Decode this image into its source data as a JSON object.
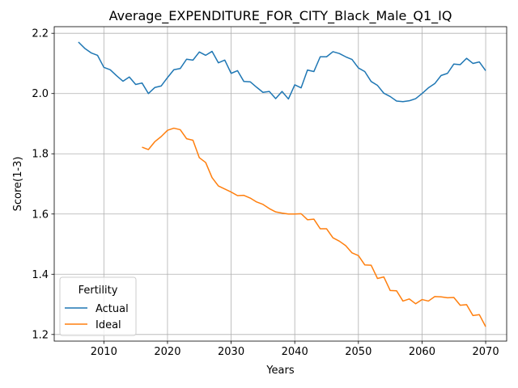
{
  "chart_data": {
    "type": "line",
    "title": "Average_EXPENDITURE_FOR_CITY_Black_Male_Q1_IQ",
    "xlabel": "Years",
    "ylabel": "Score(1-3)",
    "xlim": [
      2002.2,
      2073.3
    ],
    "ylim": [
      1.178,
      2.222
    ],
    "xticks": [
      2010,
      2020,
      2030,
      2040,
      2050,
      2060,
      2070
    ],
    "yticks": [
      1.2,
      1.4,
      1.6,
      1.8,
      2.0,
      2.2
    ],
    "xtick_labels": [
      "2010",
      "2020",
      "2030",
      "2040",
      "2050",
      "2060",
      "2070"
    ],
    "ytick_labels": [
      "1.2",
      "1.4",
      "1.6",
      "1.8",
      "2.0",
      "2.2"
    ],
    "grid": true,
    "legend": {
      "title": "Fertility",
      "placement": "lower-left"
    },
    "series": [
      {
        "name": "Actual",
        "color": "#1f77b4",
        "x": [
          2006,
          2007,
          2008,
          2009,
          2010,
          2011,
          2012,
          2013,
          2014,
          2015,
          2016,
          2017,
          2018,
          2019,
          2020,
          2021,
          2022,
          2023,
          2024,
          2025,
          2026,
          2027,
          2028,
          2029,
          2030,
          2031,
          2032,
          2033,
          2034,
          2035,
          2036,
          2037,
          2038,
          2039,
          2040,
          2041,
          2042,
          2043,
          2044,
          2045,
          2046,
          2047,
          2048,
          2049,
          2050,
          2051,
          2052,
          2053,
          2054,
          2055,
          2056,
          2057,
          2058,
          2059,
          2060,
          2061,
          2062,
          2063,
          2064,
          2065,
          2066,
          2067,
          2068,
          2069,
          2070
        ],
        "values": [
          2.171,
          2.15,
          2.135,
          2.127,
          2.087,
          2.079,
          2.059,
          2.041,
          2.055,
          2.03,
          2.035,
          2.0,
          2.02,
          2.025,
          2.053,
          2.079,
          2.083,
          2.114,
          2.111,
          2.138,
          2.127,
          2.14,
          2.102,
          2.111,
          2.067,
          2.076,
          2.04,
          2.039,
          2.021,
          2.004,
          2.007,
          1.983,
          2.007,
          1.982,
          2.029,
          2.019,
          2.078,
          2.073,
          2.122,
          2.122,
          2.139,
          2.133,
          2.122,
          2.113,
          2.085,
          2.073,
          2.04,
          2.027,
          2.001,
          1.99,
          1.975,
          1.973,
          1.976,
          1.983,
          2.0,
          2.019,
          2.033,
          2.06,
          2.067,
          2.098,
          2.096,
          2.117,
          2.1,
          2.105,
          2.076
        ]
      },
      {
        "name": "Ideal",
        "color": "#ff7f0e",
        "x": [
          2016,
          2017,
          2018,
          2019,
          2020,
          2021,
          2022,
          2023,
          2024,
          2025,
          2026,
          2027,
          2028,
          2029,
          2030,
          2031,
          2032,
          2033,
          2034,
          2035,
          2036,
          2037,
          2038,
          2039,
          2040,
          2041,
          2042,
          2043,
          2044,
          2045,
          2046,
          2047,
          2048,
          2049,
          2050,
          2051,
          2052,
          2053,
          2054,
          2055,
          2056,
          2057,
          2058,
          2059,
          2060,
          2061,
          2062,
          2063,
          2064,
          2065,
          2066,
          2067,
          2068,
          2069,
          2070
        ],
        "values": [
          1.822,
          1.814,
          1.84,
          1.857,
          1.878,
          1.885,
          1.88,
          1.85,
          1.845,
          1.787,
          1.771,
          1.721,
          1.693,
          1.683,
          1.673,
          1.661,
          1.662,
          1.653,
          1.64,
          1.632,
          1.618,
          1.607,
          1.603,
          1.6,
          1.6,
          1.601,
          1.581,
          1.583,
          1.551,
          1.551,
          1.521,
          1.51,
          1.495,
          1.471,
          1.462,
          1.431,
          1.43,
          1.386,
          1.391,
          1.346,
          1.345,
          1.311,
          1.318,
          1.302,
          1.316,
          1.311,
          1.326,
          1.325,
          1.322,
          1.323,
          1.297,
          1.299,
          1.263,
          1.266,
          1.226
        ]
      }
    ]
  }
}
